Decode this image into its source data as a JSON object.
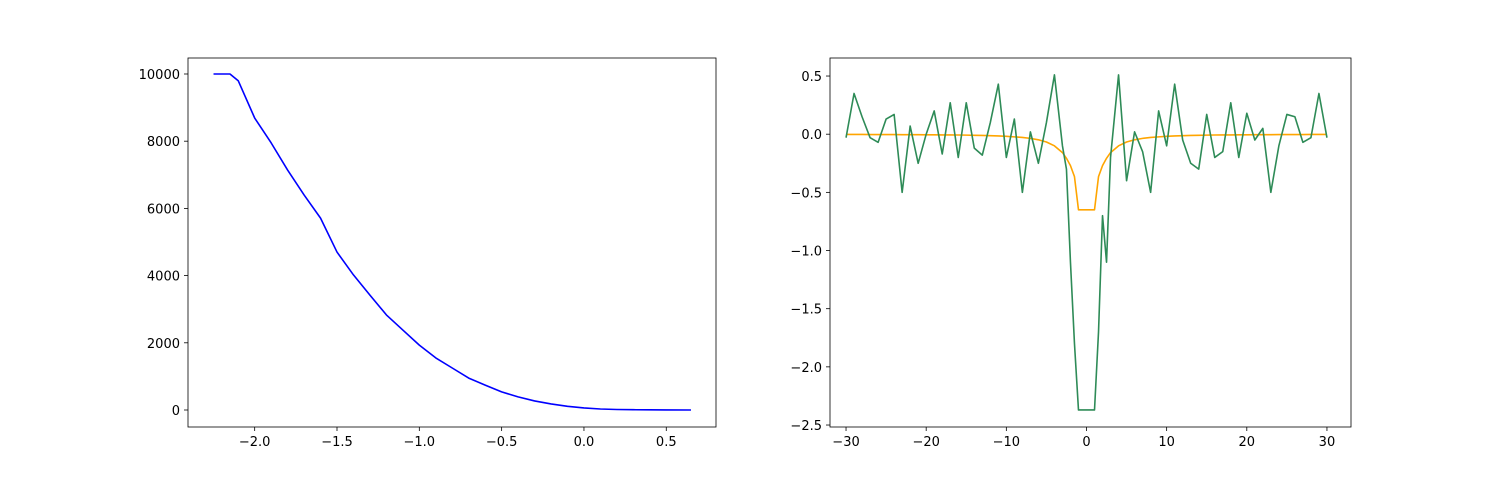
{
  "chart_data": [
    {
      "type": "line",
      "color": "#0000ff",
      "x": [
        -2.25,
        -2.15,
        -2.1,
        -2.0,
        -1.9,
        -1.8,
        -1.7,
        -1.6,
        -1.5,
        -1.4,
        -1.3,
        -1.2,
        -1.1,
        -1.0,
        -0.9,
        -0.8,
        -0.7,
        -0.6,
        -0.5,
        -0.4,
        -0.3,
        -0.2,
        -0.1,
        0.0,
        0.1,
        0.2,
        0.3,
        0.4,
        0.5,
        0.65
      ],
      "values": [
        10000,
        10000,
        9800,
        8690,
        7950,
        7140,
        6400,
        5710,
        4700,
        4020,
        3420,
        2830,
        2380,
        1930,
        1550,
        1250,
        950,
        740,
        540,
        390,
        270,
        180,
        110,
        60,
        30,
        15,
        8,
        4,
        2,
        0
      ],
      "xlim": [
        -2.405,
        0.802
      ],
      "ylim": [
        -506,
        10476
      ],
      "xticks": [
        {
          "value": -2,
          "label": "−2.0"
        },
        {
          "value": -1.5,
          "label": "−1.5"
        },
        {
          "value": -1,
          "label": "−1.0"
        },
        {
          "value": -0.5,
          "label": "−0.5"
        },
        {
          "value": 0,
          "label": "0.0"
        },
        0.5
      ],
      "yticks": [
        0,
        2000,
        4000,
        6000,
        8000,
        10000
      ]
    },
    {
      "type": "line",
      "x": [
        -30,
        -29,
        -28,
        -27,
        -26,
        -25,
        -24,
        -23,
        -22,
        -21,
        -20,
        -19,
        -18,
        -17,
        -16,
        -15,
        -14,
        -13,
        -12,
        -11,
        -10,
        -9,
        -8,
        -7,
        -6,
        -5,
        -4,
        -3,
        -2.5,
        -2,
        -1.5,
        -1,
        -0.5,
        0,
        0.5,
        1,
        1.5,
        2,
        2.5,
        3,
        4,
        5,
        6,
        7,
        8,
        9,
        10,
        11,
        12,
        13,
        14,
        15,
        16,
        17,
        18,
        19,
        20,
        21,
        22,
        23,
        24,
        25,
        26,
        27,
        28,
        29,
        30
      ],
      "series": [
        {
          "color": "#ffa500",
          "values": [
            -0.002,
            -0.002,
            -0.002,
            -0.003,
            -0.003,
            -0.003,
            -0.003,
            -0.004,
            -0.004,
            -0.004,
            -0.005,
            -0.005,
            -0.006,
            -0.006,
            -0.007,
            -0.008,
            -0.01,
            -0.011,
            -0.013,
            -0.015,
            -0.018,
            -0.023,
            -0.028,
            -0.036,
            -0.048,
            -0.067,
            -0.1,
            -0.158,
            -0.207,
            -0.27,
            -0.365,
            -0.65,
            -0.65,
            -0.65,
            -0.65,
            -0.65,
            -0.365,
            -0.27,
            -0.207,
            -0.158,
            -0.1,
            -0.067,
            -0.048,
            -0.036,
            -0.028,
            -0.023,
            -0.018,
            -0.015,
            -0.013,
            -0.011,
            -0.01,
            -0.008,
            -0.007,
            -0.006,
            -0.006,
            -0.005,
            -0.005,
            -0.004,
            -0.004,
            -0.004,
            -0.003,
            -0.003,
            -0.003,
            -0.003,
            -0.002,
            -0.002,
            -0.002
          ]
        },
        {
          "color": "#2e8b57",
          "values": [
            -0.03,
            0.35,
            0.15,
            -0.03,
            -0.07,
            0.13,
            0.17,
            -0.5,
            0.07,
            -0.25,
            0.0,
            0.2,
            -0.17,
            0.27,
            -0.2,
            0.27,
            -0.12,
            -0.18,
            0.1,
            0.43,
            -0.2,
            0.13,
            -0.5,
            0.02,
            -0.25,
            0.1,
            0.51,
            -0.1,
            -0.3,
            -1.1,
            -1.8,
            -2.37,
            -2.37,
            -2.37,
            -2.37,
            -2.37,
            -1.7,
            -0.7,
            -1.1,
            -0.2,
            0.51,
            -0.4,
            0.02,
            -0.15,
            -0.5,
            0.2,
            -0.1,
            0.43,
            -0.05,
            -0.25,
            -0.3,
            0.17,
            -0.2,
            -0.15,
            0.27,
            -0.2,
            0.18,
            -0.05,
            0.05,
            -0.5,
            -0.1,
            0.17,
            0.15,
            -0.07,
            -0.03,
            0.35,
            -0.03
          ]
        }
      ],
      "xlim": [
        -32,
        33
      ],
      "ylim": [
        -2.517,
        0.655
      ],
      "xticks": [
        {
          "value": -30,
          "label": "−30"
        },
        {
          "value": -20,
          "label": "−20"
        },
        {
          "value": -10,
          "label": "−10"
        },
        0,
        10,
        20,
        30
      ],
      "yticks": [
        {
          "value": -2.5,
          "label": "−2.5"
        },
        {
          "value": -2,
          "label": "−2.0"
        },
        {
          "value": -1.5,
          "label": "−1.5"
        },
        {
          "value": -1,
          "label": "−1.0"
        },
        {
          "value": -0.5,
          "label": "−0.5"
        },
        {
          "value": 0,
          "label": "0.0"
        },
        0.5
      ]
    }
  ]
}
